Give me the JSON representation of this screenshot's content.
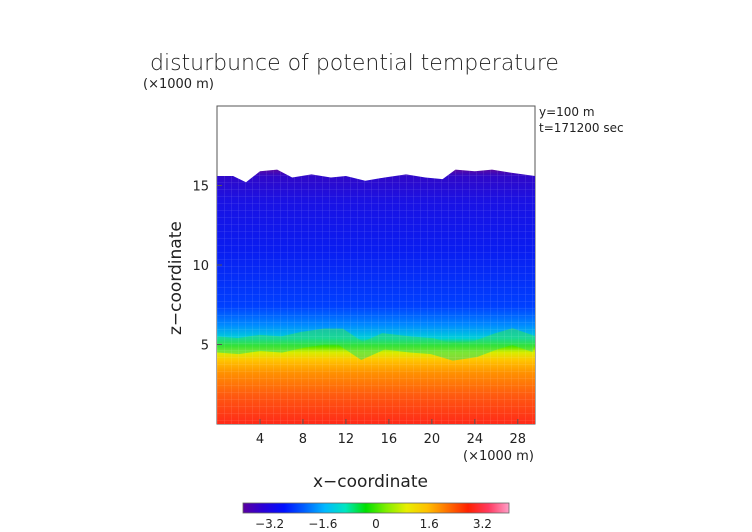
{
  "chart_data": {
    "type": "heatmap",
    "title": "disturbunce of potential temperature",
    "unit_top": "(×1000 m)",
    "annotations": [
      "y=100 m",
      "t=171200 sec"
    ],
    "xlabel": "x−coordinate",
    "xunit": "(×1000 m)",
    "ylabel": "z−coordinate",
    "x_ticks": [
      "4",
      "8",
      "12",
      "16",
      "20",
      "24",
      "28"
    ],
    "y_ticks": [
      "5",
      "10",
      "15"
    ],
    "xlim": [
      0,
      29.6
    ],
    "ylim": [
      0,
      20
    ],
    "grid": true,
    "colorbar": {
      "ticks": [
        "−3.2",
        "−1.6",
        "0",
        "1.6",
        "3.2"
      ],
      "tick_values": [
        -3.2,
        -1.6,
        0,
        1.6,
        3.2
      ],
      "range": [
        -4.0,
        4.0
      ],
      "colormap": [
        "#5a00a0",
        "#2a00d8",
        "#0010ff",
        "#0060ff",
        "#00b8ff",
        "#00e6c0",
        "#00e000",
        "#80ee00",
        "#e8ee00",
        "#ffc000",
        "#ff7000",
        "#ff2000",
        "#ff3a60",
        "#ff9ec8"
      ]
    },
    "field": {
      "top_boundary_km": [
        [
          0,
          15.6
        ],
        [
          1.5,
          15.6
        ],
        [
          2.7,
          15.2
        ],
        [
          4.0,
          15.9
        ],
        [
          5.6,
          16.0
        ],
        [
          7.0,
          15.5
        ],
        [
          8.8,
          15.7
        ],
        [
          10.6,
          15.5
        ],
        [
          12.0,
          15.6
        ],
        [
          13.8,
          15.3
        ],
        [
          15.6,
          15.5
        ],
        [
          17.6,
          15.7
        ],
        [
          19.4,
          15.5
        ],
        [
          21.0,
          15.4
        ],
        [
          22.2,
          16.0
        ],
        [
          24.0,
          15.9
        ],
        [
          25.6,
          16.0
        ],
        [
          27.4,
          15.8
        ],
        [
          29.6,
          15.6
        ]
      ],
      "transition_center_km": [
        [
          0,
          5.0
        ],
        [
          2.0,
          4.9
        ],
        [
          4.0,
          5.1
        ],
        [
          6.0,
          5.0
        ],
        [
          8.0,
          5.3
        ],
        [
          10.0,
          5.5
        ],
        [
          11.5,
          5.5
        ],
        [
          13.5,
          4.6
        ],
        [
          15.5,
          5.2
        ],
        [
          18.0,
          5.0
        ],
        [
          20.0,
          4.9
        ],
        [
          22.0,
          4.5
        ],
        [
          24.0,
          4.7
        ],
        [
          26.0,
          5.2
        ],
        [
          27.5,
          5.5
        ],
        [
          29.6,
          5.0
        ]
      ]
    }
  }
}
